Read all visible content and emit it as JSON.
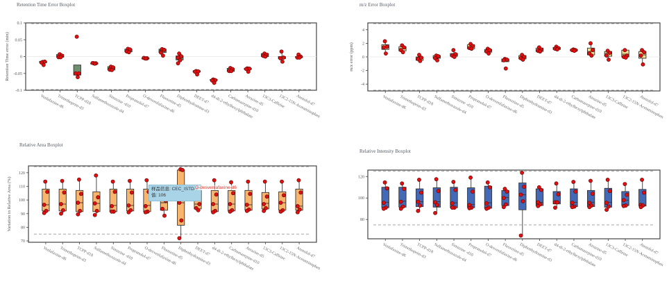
{
  "compounds": [
    "Venlafaxine-d6",
    "Trimethoprim-d3",
    "TCPP-d18",
    "Sulfamethoxazole-d4",
    "Simazine -d10",
    "Propranolol-d7",
    "O-desvenlafaxine-d6",
    "Fluoxetine-d5",
    "Diphenhydramine-d3",
    "DEET-d7",
    "d4-di-2-ethylhexylphthalate",
    "Carbamazepine-d10",
    "Atrazine-d5",
    "13C3-Caffeine",
    "13C2-15N-Acetaminophen",
    "Atenolol-d7"
  ],
  "tooltip": {
    "sample_label": "样品信息: CEC_ISTD-2",
    "value_label": "值: 106",
    "series_label": "O-desvenlafaxine-d6"
  },
  "chart_data": [
    {
      "id": "rt",
      "type": "boxplot",
      "title": "Retention Time Error Boxplot",
      "xlabel": "",
      "ylabel": "Retention Time error (min)",
      "ylim": [
        -0.1,
        0.1
      ],
      "yticks": [
        0.1,
        0.05,
        0,
        -0.05,
        -0.1
      ],
      "ytick_labels": [
        "0.1",
        "0.05",
        "0",
        "-0.05",
        "-0.1"
      ],
      "reference_lines": [
        0.1,
        -0.1
      ],
      "zero_line": 0,
      "box_color": "#6f8f6f",
      "point_color": "#e01010",
      "boxes": [
        {
          "q1": -0.018,
          "median": -0.016,
          "q3": -0.014,
          "min": -0.025,
          "max": -0.014,
          "points": [
            -0.016,
            -0.015,
            -0.018,
            -0.025
          ]
        },
        {
          "q1": -0.002,
          "median": 0.002,
          "q3": 0.006,
          "min": -0.002,
          "max": 0.007,
          "points": [
            0.007,
            0.003,
            -0.002,
            -0.002
          ]
        },
        {
          "q1": -0.055,
          "median": -0.05,
          "q3": -0.025,
          "min": -0.06,
          "max": -0.025,
          "points": [
            0.059,
            -0.05,
            -0.05,
            -0.061
          ]
        },
        {
          "q1": -0.021,
          "median": -0.02,
          "q3": -0.019,
          "min": -0.021,
          "max": -0.019,
          "points": [
            -0.02,
            -0.02,
            -0.019,
            -0.021
          ]
        },
        {
          "q1": -0.04,
          "median": -0.035,
          "q3": -0.03,
          "min": -0.04,
          "max": -0.03,
          "points": [
            -0.03,
            -0.032,
            -0.039,
            -0.04
          ]
        },
        {
          "q1": 0.014,
          "median": 0.018,
          "q3": 0.022,
          "min": 0.013,
          "max": 0.023,
          "points": [
            0.023,
            0.021,
            0.015,
            0.013
          ]
        },
        {
          "q1": -0.006,
          "median": -0.005,
          "q3": -0.004,
          "min": -0.006,
          "max": -0.004,
          "points": [
            -0.005,
            -0.005,
            -0.004,
            -0.006
          ]
        },
        {
          "q1": 0.012,
          "median": 0.018,
          "q3": 0.022,
          "min": 0.003,
          "max": 0.022,
          "points": [
            0.022,
            0.02,
            0.012,
            0.003
          ]
        },
        {
          "q1": -0.01,
          "median": -0.003,
          "q3": 0.002,
          "min": -0.02,
          "max": 0.009,
          "points": [
            0.009,
            0.001,
            -0.003,
            -0.011,
            -0.02
          ]
        },
        {
          "q1": -0.046,
          "median": -0.044,
          "q3": -0.042,
          "min": -0.053,
          "max": -0.042,
          "points": [
            -0.043,
            -0.044,
            -0.045,
            -0.053
          ]
        },
        {
          "q1": -0.071,
          "median": -0.069,
          "q3": -0.068,
          "min": -0.078,
          "max": -0.068,
          "points": [
            -0.068,
            -0.07,
            -0.071,
            -0.078
          ]
        },
        {
          "q1": -0.044,
          "median": -0.04,
          "q3": -0.035,
          "min": -0.044,
          "max": -0.034,
          "points": [
            -0.034,
            -0.037,
            -0.043,
            -0.043
          ]
        },
        {
          "q1": -0.038,
          "median": -0.036,
          "q3": -0.035,
          "min": -0.045,
          "max": -0.035,
          "points": [
            -0.035,
            -0.036,
            -0.037,
            -0.045
          ]
        },
        {
          "q1": 0.0,
          "median": 0.004,
          "q3": 0.009,
          "min": 0.0,
          "max": 0.009,
          "points": [
            0.009,
            0.006,
            0.002,
            0.0
          ]
        },
        {
          "q1": -0.006,
          "median": -0.003,
          "q3": 0.0,
          "min": -0.015,
          "max": 0.015,
          "points": [
            0.015,
            -0.003,
            -0.005,
            -0.015
          ]
        },
        {
          "q1": -0.003,
          "median": -0.002,
          "q3": 0.0,
          "min": -0.003,
          "max": 0.006,
          "points": [
            0.006,
            0.0,
            -0.003,
            -0.003
          ]
        }
      ]
    },
    {
      "id": "mz",
      "type": "boxplot",
      "title": "m/z Error Boxplot",
      "xlabel": "",
      "ylabel": "m/z error (ppm)",
      "ylim": [
        -5,
        5
      ],
      "yticks": [
        4,
        2,
        0,
        -2,
        -4
      ],
      "ytick_labels": [
        "4",
        "2",
        "0",
        "-2",
        "-4"
      ],
      "reference_lines": [
        5,
        -5
      ],
      "zero_line": 0,
      "box_color": "#f3d98a",
      "point_color": "#e01010",
      "boxes": [
        {
          "q1": 1.1,
          "median": 1.5,
          "q3": 1.8,
          "min": 0.5,
          "max": 2.3,
          "points": [
            2.3,
            1.5,
            1.4,
            0.5
          ]
        },
        {
          "q1": 0.9,
          "median": 1.2,
          "q3": 1.5,
          "min": 0.6,
          "max": 1.7,
          "points": [
            1.7,
            1.4,
            1.0,
            0.7
          ]
        },
        {
          "q1": -0.5,
          "median": -0.2,
          "q3": 0.0,
          "min": -0.6,
          "max": 0.3,
          "points": [
            0.3,
            -0.1,
            -0.3,
            -0.6
          ]
        },
        {
          "q1": -0.2,
          "median": 0.0,
          "q3": 0.2,
          "min": -0.5,
          "max": 0.3,
          "points": [
            0.2,
            0.1,
            -0.2,
            -0.5
          ]
        },
        {
          "q1": 0.1,
          "median": 0.3,
          "q3": 0.5,
          "min": 0.0,
          "max": 1.0,
          "points": [
            1.0,
            0.4,
            0.2,
            0.0
          ]
        },
        {
          "q1": 1.2,
          "median": 1.5,
          "q3": 1.8,
          "min": 1.2,
          "max": 1.9,
          "points": [
            1.9,
            1.6,
            1.3,
            1.2
          ]
        },
        {
          "q1": 0.7,
          "median": 0.9,
          "q3": 1.1,
          "min": 0.5,
          "max": 1.2,
          "points": [
            1.2,
            1.0,
            0.8,
            0.5
          ]
        },
        {
          "q1": -0.7,
          "median": -0.5,
          "q3": -0.3,
          "min": -0.7,
          "max": -0.3,
          "points": [
            -0.3,
            -0.4,
            -0.5,
            -1.7
          ]
        },
        {
          "q1": -0.3,
          "median": 0.0,
          "q3": 0.2,
          "min": -0.4,
          "max": 0.3,
          "points": [
            0.3,
            0.0,
            -0.2,
            -0.4
          ]
        },
        {
          "q1": 0.8,
          "median": 1.0,
          "q3": 1.3,
          "min": 0.8,
          "max": 1.4,
          "points": [
            1.4,
            1.1,
            0.9,
            0.8
          ]
        },
        {
          "q1": 1.1,
          "median": 1.3,
          "q3": 1.4,
          "min": 1.1,
          "max": 1.5,
          "points": [
            1.5,
            1.3,
            1.2,
            1.1
          ]
        },
        {
          "q1": 0.9,
          "median": 1.0,
          "q3": 1.1,
          "min": 0.9,
          "max": 1.1,
          "points": [
            1.1,
            1.0,
            1.0,
            0.9
          ]
        },
        {
          "q1": 0.3,
          "median": 0.8,
          "q3": 1.3,
          "min": 0.2,
          "max": 2.0,
          "points": [
            2.0,
            1.0,
            0.5,
            0.2
          ]
        },
        {
          "q1": 0.1,
          "median": 0.5,
          "q3": 0.8,
          "min": -0.4,
          "max": 0.9,
          "points": [
            0.9,
            0.6,
            0.2,
            -0.4
          ]
        },
        {
          "q1": 0.0,
          "median": 0.4,
          "q3": 1.0,
          "min": -0.1,
          "max": 1.0,
          "points": [
            1.0,
            0.2,
            0.0,
            -0.1
          ]
        },
        {
          "q1": -0.2,
          "median": 0.3,
          "q3": 0.8,
          "min": -1.1,
          "max": 1.0,
          "points": [
            1.0,
            0.7,
            0.2,
            -1.1
          ]
        }
      ]
    },
    {
      "id": "area",
      "type": "boxplot",
      "title": "Relative Area Boxplot",
      "xlabel": "",
      "ylabel": "Variation in Relative Area (%)",
      "ylim": [
        69,
        125
      ],
      "yticks": [
        120,
        110,
        100,
        90,
        80,
        70
      ],
      "ytick_labels": [
        "120",
        "110",
        "100",
        "90",
        "80",
        "70"
      ],
      "reference_lines": [
        125,
        75
      ],
      "zero_line": null,
      "box_color": "#f8b56e",
      "point_color": "#e01010",
      "boxes": [
        {
          "q1": 92,
          "median": 96.5,
          "q3": 108,
          "min": 90.5,
          "max": 113.5,
          "points": [
            113.5,
            106,
            96.5,
            92,
            90.5
          ]
        },
        {
          "q1": 92,
          "median": 97,
          "q3": 108,
          "min": 90,
          "max": 114,
          "points": [
            114,
            105.5,
            97,
            92.5,
            90
          ]
        },
        {
          "q1": 91.5,
          "median": 98,
          "q3": 107,
          "min": 89.5,
          "max": 115,
          "points": [
            115,
            104.5,
            98,
            92,
            89.5
          ]
        },
        {
          "q1": 91.5,
          "median": 97.5,
          "q3": 106,
          "min": 89,
          "max": 118,
          "points": [
            118,
            102,
            97.5,
            92,
            89
          ]
        },
        {
          "q1": 91.5,
          "median": 96,
          "q3": 108,
          "min": 91.5,
          "max": 113.5,
          "points": [
            113.5,
            106,
            95.5,
            91.5,
            91.5
          ]
        },
        {
          "q1": 92,
          "median": 96,
          "q3": 108,
          "min": 91,
          "max": 114,
          "points": [
            114,
            105.5,
            96,
            92.5,
            91
          ]
        },
        {
          "q1": 91.5,
          "median": 96,
          "q3": 108,
          "min": 91,
          "max": 114.5,
          "points": [
            114.5,
            106,
            95.5,
            91.5,
            91
          ]
        },
        {
          "q1": 92.5,
          "median": 98,
          "q3": 107,
          "min": 88.5,
          "max": 107,
          "points": [
            106,
            99.5,
            93.5,
            88.5
          ]
        },
        {
          "q1": 81.5,
          "median": 98,
          "q3": 122,
          "min": 72,
          "max": 122.5,
          "points": [
            122.5,
            122,
            98,
            85,
            72
          ]
        },
        {
          "q1": 93.5,
          "median": 97,
          "q3": 107,
          "min": 92.5,
          "max": 109,
          "points": [
            106,
            97,
            94,
            92.5
          ]
        },
        {
          "q1": 91.5,
          "median": 97,
          "q3": 107,
          "min": 91,
          "max": 114.5,
          "points": [
            114.5,
            104,
            97,
            92,
            91
          ]
        },
        {
          "q1": 92,
          "median": 97,
          "q3": 107,
          "min": 91.5,
          "max": 113,
          "points": [
            113,
            105,
            97,
            92.5,
            91.5
          ]
        },
        {
          "q1": 92.5,
          "median": 96.5,
          "q3": 107,
          "min": 92,
          "max": 113.5,
          "points": [
            113.5,
            104.5,
            96.5,
            93,
            92
          ]
        },
        {
          "q1": 93.5,
          "median": 97.5,
          "q3": 105.5,
          "min": 92,
          "max": 113.5,
          "points": [
            113.5,
            102.5,
            97,
            94,
            92
          ]
        },
        {
          "q1": 92.5,
          "median": 98,
          "q3": 106,
          "min": 91.5,
          "max": 113.5,
          "points": [
            113.5,
            103.5,
            98,
            92.5,
            91.5
          ]
        },
        {
          "q1": 92.5,
          "median": 95.5,
          "q3": 108,
          "min": 91,
          "max": 114.5,
          "points": [
            114.5,
            105.5,
            95.5,
            93,
            91
          ]
        }
      ]
    },
    {
      "id": "intensity",
      "type": "boxplot",
      "title": "Relative Intensity Boxplot",
      "xlabel": "",
      "ylabel": "",
      "ylim": [
        62,
        126
      ],
      "yticks": [
        120,
        100,
        80
      ],
      "ytick_labels": [
        "120",
        "100",
        "80"
      ],
      "reference_lines": [
        125,
        75
      ],
      "zero_line": null,
      "box_color": "#4469b6",
      "point_color": "#e01010",
      "boxes": [
        {
          "q1": 91,
          "median": 96,
          "q3": 110,
          "min": 90,
          "max": 114.5,
          "points": [
            114.5,
            109,
            95.5,
            91,
            90
          ]
        },
        {
          "q1": 91.5,
          "median": 97,
          "q3": 110,
          "min": 90,
          "max": 113.5,
          "points": [
            113.5,
            108.5,
            96.5,
            92,
            90
          ]
        },
        {
          "q1": 92,
          "median": 96.5,
          "q3": 108.5,
          "min": 88,
          "max": 117,
          "points": [
            117,
            105,
            96.5,
            93,
            88
          ]
        },
        {
          "q1": 91.5,
          "median": 96.5,
          "q3": 109.5,
          "min": 86,
          "max": 117.5,
          "points": [
            117.5,
            106.5,
            96,
            93.5,
            86
          ]
        },
        {
          "q1": 91,
          "median": 95.5,
          "q3": 110,
          "min": 91,
          "max": 115,
          "points": [
            115,
            107.5,
            95,
            91,
            91
          ]
        },
        {
          "q1": 91,
          "median": 94,
          "q3": 109.5,
          "min": 90.5,
          "max": 119,
          "points": [
            119,
            106,
            93.5,
            91,
            90.5
          ]
        },
        {
          "q1": 90.5,
          "median": 95.5,
          "q3": 111,
          "min": 90,
          "max": 114.5,
          "points": [
            114.5,
            110,
            95,
            91,
            90
          ]
        },
        {
          "q1": 93,
          "median": 100.5,
          "q3": 107,
          "min": 91.5,
          "max": 108.5,
          "points": [
            108.5,
            106,
            100,
            94,
            91.5
          ]
        },
        {
          "q1": 89,
          "median": 103,
          "q3": 114,
          "min": 65,
          "max": 123.5,
          "points": [
            123.5,
            110.5,
            103,
            97,
            65
          ]
        },
        {
          "q1": 93,
          "median": 96,
          "q3": 108.5,
          "min": 92.5,
          "max": 110,
          "points": [
            110,
            107.5,
            96,
            94,
            92.5
          ]
        },
        {
          "q1": 94.5,
          "median": 96,
          "q3": 106,
          "min": 91,
          "max": 113.5,
          "points": [
            113.5,
            103.5,
            96,
            96,
            91
          ]
        },
        {
          "q1": 92,
          "median": 96,
          "q3": 108.5,
          "min": 91.5,
          "max": 115,
          "points": [
            115,
            106,
            95.5,
            92,
            91.5
          ]
        },
        {
          "q1": 92,
          "median": 96,
          "q3": 107,
          "min": 91.5,
          "max": 116,
          "points": [
            116,
            104,
            95.5,
            93,
            91.5
          ]
        },
        {
          "q1": 91.5,
          "median": 96,
          "q3": 109,
          "min": 89,
          "max": 117,
          "points": [
            117,
            106.5,
            95.5,
            92,
            89
          ]
        },
        {
          "q1": 93,
          "median": 98,
          "q3": 106,
          "min": 92.5,
          "max": 113,
          "points": [
            113,
            103,
            98,
            93,
            92.5
          ]
        },
        {
          "q1": 92.5,
          "median": 93.5,
          "q3": 108,
          "min": 91.5,
          "max": 117,
          "points": [
            117,
            105,
            93.5,
            93,
            91.5
          ]
        }
      ]
    }
  ]
}
